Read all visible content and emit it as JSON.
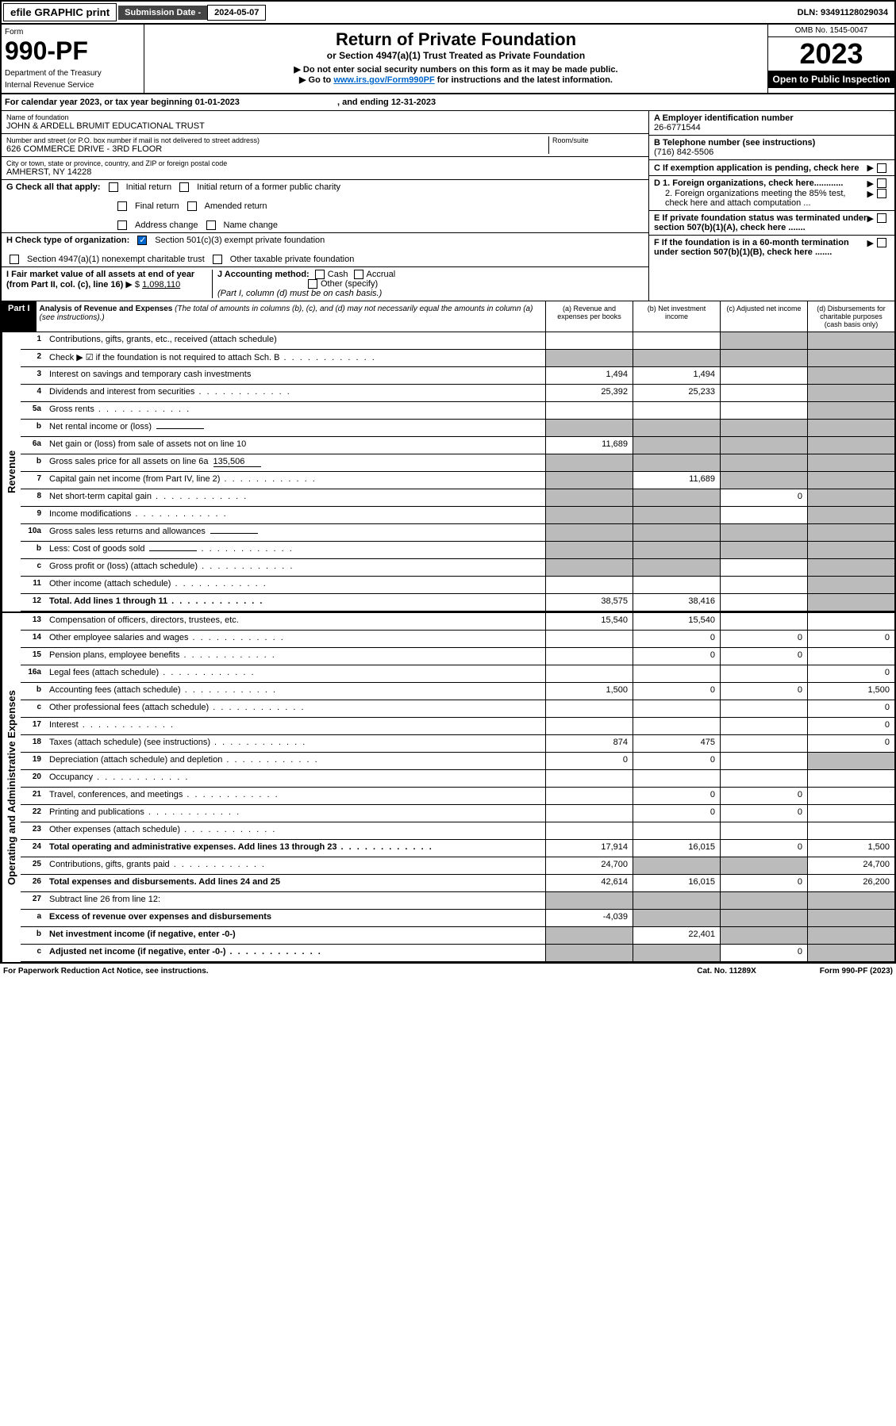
{
  "topbar": {
    "efile": "efile GRAPHIC print",
    "sub_label": "Submission Date - ",
    "sub_date": "2024-05-07",
    "dln": "DLN: 93491128029034"
  },
  "header": {
    "form_label": "Form",
    "form_num": "990-PF",
    "dept1": "Department of the Treasury",
    "dept2": "Internal Revenue Service",
    "title": "Return of Private Foundation",
    "subtitle": "or Section 4947(a)(1) Trust Treated as Private Foundation",
    "instr1": "▶ Do not enter social security numbers on this form as it may be made public.",
    "instr2_pre": "▶ Go to ",
    "instr2_link": "www.irs.gov/Form990PF",
    "instr2_post": " for instructions and the latest information.",
    "omb": "OMB No. 1545-0047",
    "year": "2023",
    "open": "Open to Public Inspection"
  },
  "cal": {
    "text": "For calendar year 2023, or tax year beginning 01-01-2023",
    "end": ", and ending 12-31-2023"
  },
  "ident": {
    "name_label": "Name of foundation",
    "name": "JOHN & ARDELL BRUMIT EDUCATIONAL TRUST",
    "addr_label": "Number and street (or P.O. box number if mail is not delivered to street address)",
    "addr": "626 COMMERCE DRIVE - 3RD FLOOR",
    "room_label": "Room/suite",
    "city_label": "City or town, state or province, country, and ZIP or foreign postal code",
    "city": "AMHERST, NY  14228",
    "a_label": "A Employer identification number",
    "a_val": "26-6771544",
    "b_label": "B Telephone number (see instructions)",
    "b_val": "(716) 842-5506",
    "c_label": "C If exemption application is pending, check here",
    "d1": "D 1. Foreign organizations, check here............",
    "d2": "2. Foreign organizations meeting the 85% test, check here and attach computation ...",
    "e": "E  If private foundation status was terminated under section 507(b)(1)(A), check here .......",
    "f": "F  If the foundation is in a 60-month termination under section 507(b)(1)(B), check here .......",
    "g_label": "G Check all that apply:",
    "g_opts": [
      "Initial return",
      "Initial return of a former public charity",
      "Final return",
      "Amended return",
      "Address change",
      "Name change"
    ],
    "h_label": "H Check type of organization:",
    "h1": "Section 501(c)(3) exempt private foundation",
    "h2": "Section 4947(a)(1) nonexempt charitable trust",
    "h3": "Other taxable private foundation",
    "i_label": "I Fair market value of all assets at end of year (from Part II, col. (c), line 16)",
    "i_val": "1,098,110",
    "j_label": "J Accounting method:",
    "j_opts": [
      "Cash",
      "Accrual",
      "Other (specify)"
    ],
    "j_note": "(Part I, column (d) must be on cash basis.)"
  },
  "part1": {
    "hdr": "Part I",
    "title": "Analysis of Revenue and Expenses",
    "title_note": "(The total of amounts in columns (b), (c), and (d) may not necessarily equal the amounts in column (a) (see instructions).)",
    "cols": [
      "(a)  Revenue and expenses per books",
      "(b)  Net investment income",
      "(c)  Adjusted net income",
      "(d)  Disbursements for charitable purposes (cash basis only)"
    ]
  },
  "sections": {
    "revenue": "Revenue",
    "expenses": "Operating and Administrative Expenses"
  },
  "lines": [
    {
      "n": "1",
      "d": "Contributions, gifts, grants, etc., received (attach schedule)",
      "a": "",
      "b": "",
      "c": "g",
      "dd": "g"
    },
    {
      "n": "2",
      "d": "Check ▶ ☑ if the foundation is not required to attach Sch. B",
      "a": "g",
      "b": "g",
      "c": "g",
      "dd": "g",
      "dotted": true
    },
    {
      "n": "3",
      "d": "Interest on savings and temporary cash investments",
      "a": "1,494",
      "b": "1,494",
      "c": "",
      "dd": "g"
    },
    {
      "n": "4",
      "d": "Dividends and interest from securities",
      "a": "25,392",
      "b": "25,233",
      "c": "",
      "dd": "g",
      "dotted": true
    },
    {
      "n": "5a",
      "d": "Gross rents",
      "a": "",
      "b": "",
      "c": "",
      "dd": "g",
      "dotted": true
    },
    {
      "n": "b",
      "d": "Net rental income or (loss)",
      "a": "g",
      "b": "g",
      "c": "g",
      "dd": "g",
      "inline": true
    },
    {
      "n": "6a",
      "d": "Net gain or (loss) from sale of assets not on line 10",
      "a": "11,689",
      "b": "g",
      "c": "g",
      "dd": "g"
    },
    {
      "n": "b",
      "d": "Gross sales price for all assets on line 6a",
      "a": "g",
      "b": "g",
      "c": "g",
      "dd": "g",
      "inline": true,
      "ival": "135,506"
    },
    {
      "n": "7",
      "d": "Capital gain net income (from Part IV, line 2)",
      "a": "g",
      "b": "11,689",
      "c": "g",
      "dd": "g",
      "dotted": true
    },
    {
      "n": "8",
      "d": "Net short-term capital gain",
      "a": "g",
      "b": "g",
      "c": "0",
      "dd": "g",
      "dotted": true
    },
    {
      "n": "9",
      "d": "Income modifications",
      "a": "g",
      "b": "g",
      "c": "",
      "dd": "g",
      "dotted": true
    },
    {
      "n": "10a",
      "d": "Gross sales less returns and allowances",
      "a": "g",
      "b": "g",
      "c": "g",
      "dd": "g",
      "inline": true
    },
    {
      "n": "b",
      "d": "Less: Cost of goods sold",
      "a": "g",
      "b": "g",
      "c": "g",
      "dd": "g",
      "inline": true,
      "dotted": true
    },
    {
      "n": "c",
      "d": "Gross profit or (loss) (attach schedule)",
      "a": "g",
      "b": "g",
      "c": "",
      "dd": "g",
      "dotted": true
    },
    {
      "n": "11",
      "d": "Other income (attach schedule)",
      "a": "",
      "b": "",
      "c": "",
      "dd": "g",
      "dotted": true
    },
    {
      "n": "12",
      "d": "Total. Add lines 1 through 11",
      "a": "38,575",
      "b": "38,416",
      "c": "",
      "dd": "g",
      "bold": true,
      "dotted": true
    }
  ],
  "exp_lines": [
    {
      "n": "13",
      "d": "Compensation of officers, directors, trustees, etc.",
      "a": "15,540",
      "b": "15,540",
      "c": "",
      "dd": ""
    },
    {
      "n": "14",
      "d": "Other employee salaries and wages",
      "a": "",
      "b": "0",
      "c": "0",
      "dd": "0",
      "dotted": true
    },
    {
      "n": "15",
      "d": "Pension plans, employee benefits",
      "a": "",
      "b": "0",
      "c": "0",
      "dd": "",
      "dotted": true
    },
    {
      "n": "16a",
      "d": "Legal fees (attach schedule)",
      "a": "",
      "b": "",
      "c": "",
      "dd": "0",
      "dotted": true
    },
    {
      "n": "b",
      "d": "Accounting fees (attach schedule)",
      "a": "1,500",
      "b": "0",
      "c": "0",
      "dd": "1,500",
      "dotted": true
    },
    {
      "n": "c",
      "d": "Other professional fees (attach schedule)",
      "a": "",
      "b": "",
      "c": "",
      "dd": "0",
      "dotted": true
    },
    {
      "n": "17",
      "d": "Interest",
      "a": "",
      "b": "",
      "c": "",
      "dd": "0",
      "dotted": true
    },
    {
      "n": "18",
      "d": "Taxes (attach schedule) (see instructions)",
      "a": "874",
      "b": "475",
      "c": "",
      "dd": "0",
      "dotted": true
    },
    {
      "n": "19",
      "d": "Depreciation (attach schedule) and depletion",
      "a": "0",
      "b": "0",
      "c": "",
      "dd": "g",
      "dotted": true
    },
    {
      "n": "20",
      "d": "Occupancy",
      "a": "",
      "b": "",
      "c": "",
      "dd": "",
      "dotted": true
    },
    {
      "n": "21",
      "d": "Travel, conferences, and meetings",
      "a": "",
      "b": "0",
      "c": "0",
      "dd": "",
      "dotted": true
    },
    {
      "n": "22",
      "d": "Printing and publications",
      "a": "",
      "b": "0",
      "c": "0",
      "dd": "",
      "dotted": true
    },
    {
      "n": "23",
      "d": "Other expenses (attach schedule)",
      "a": "",
      "b": "",
      "c": "",
      "dd": "",
      "dotted": true
    },
    {
      "n": "24",
      "d": "Total operating and administrative expenses. Add lines 13 through 23",
      "a": "17,914",
      "b": "16,015",
      "c": "0",
      "dd": "1,500",
      "bold": true,
      "dotted": true
    },
    {
      "n": "25",
      "d": "Contributions, gifts, grants paid",
      "a": "24,700",
      "b": "g",
      "c": "g",
      "dd": "24,700",
      "dotted": true
    },
    {
      "n": "26",
      "d": "Total expenses and disbursements. Add lines 24 and 25",
      "a": "42,614",
      "b": "16,015",
      "c": "0",
      "dd": "26,200",
      "bold": true
    },
    {
      "n": "27",
      "d": "Subtract line 26 from line 12:",
      "a": "g",
      "b": "g",
      "c": "g",
      "dd": "g"
    },
    {
      "n": "a",
      "d": "Excess of revenue over expenses and disbursements",
      "a": "-4,039",
      "b": "g",
      "c": "g",
      "dd": "g",
      "bold": true
    },
    {
      "n": "b",
      "d": "Net investment income (if negative, enter -0-)",
      "a": "g",
      "b": "22,401",
      "c": "g",
      "dd": "g",
      "bold": true
    },
    {
      "n": "c",
      "d": "Adjusted net income (if negative, enter -0-)",
      "a": "g",
      "b": "g",
      "c": "0",
      "dd": "g",
      "bold": true,
      "dotted": true
    }
  ],
  "footer": {
    "left": "For Paperwork Reduction Act Notice, see instructions.",
    "mid": "Cat. No. 11289X",
    "right": "Form 990-PF (2023)"
  }
}
